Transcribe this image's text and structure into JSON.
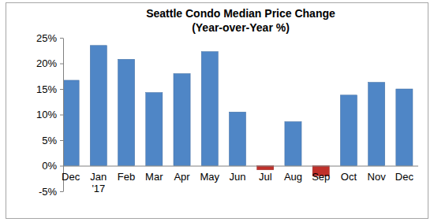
{
  "chart_data": {
    "type": "bar",
    "title": "Seattle Condo Median Price Change",
    "subtitle": "(Year-over-Year %)",
    "categories": [
      "Dec",
      "Jan '17",
      "Feb",
      "Mar",
      "Apr",
      "May",
      "Jun",
      "Jul",
      "Aug",
      "Sep",
      "Oct",
      "Nov",
      "Dec"
    ],
    "values": [
      16.7,
      23.5,
      20.8,
      14.3,
      18.0,
      22.3,
      10.5,
      -0.8,
      8.6,
      -2.0,
      13.8,
      16.3,
      15.0
    ],
    "colors": [
      "#4f86c6",
      "#4f86c6",
      "#4f86c6",
      "#4f86c6",
      "#4f86c6",
      "#4f86c6",
      "#4f86c6",
      "#c0302a",
      "#4f86c6",
      "#c0302a",
      "#4f86c6",
      "#4f86c6",
      "#4f86c6"
    ],
    "ylim": [
      -5,
      25
    ],
    "yticks": [
      {
        "value": -5,
        "label": "-5%"
      },
      {
        "value": 0,
        "label": "0%"
      },
      {
        "value": 5,
        "label": "5%"
      },
      {
        "value": 10,
        "label": "10%"
      },
      {
        "value": 15,
        "label": "15%"
      },
      {
        "value": 20,
        "label": "20%"
      },
      {
        "value": 25,
        "label": "25%"
      }
    ],
    "grid": false
  }
}
